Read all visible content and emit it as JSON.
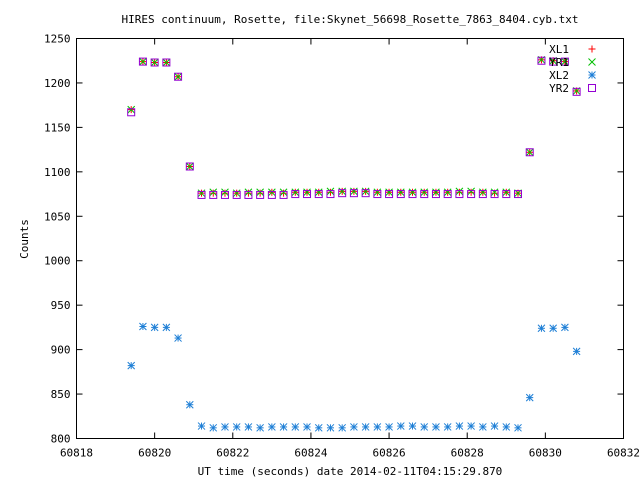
{
  "chart_data": {
    "type": "scatter",
    "title": "HIRES continuum, Rosette, file:Skynet_56698_Rosette_7863_8404.cyb.txt",
    "xlabel": "UT time (seconds) date 2014-02-11T04:15:29.870",
    "ylabel": "Counts",
    "xlim": [
      60818,
      60832
    ],
    "ylim": [
      800,
      1250
    ],
    "x_ticks": [
      "60818",
      "60820",
      "60822",
      "60824",
      "60826",
      "60828",
      "60830",
      "60832"
    ],
    "y_ticks": [
      "800",
      "850",
      "900",
      "950",
      "1000",
      "1050",
      "1100",
      "1150",
      "1200",
      "1250"
    ],
    "grid": false,
    "legend_position": "top-right",
    "series": [
      {
        "name": "XL1",
        "color": "#ff0000",
        "marker": "plus",
        "x": [
          60819.4,
          60819.7,
          60820.0,
          60820.3,
          60820.6,
          60820.9,
          60821.2,
          60821.5,
          60821.8,
          60822.1,
          60822.4,
          60822.7,
          60823.0,
          60823.3,
          60823.6,
          60823.9,
          60824.2,
          60824.5,
          60824.8,
          60825.1,
          60825.4,
          60825.7,
          60826.0,
          60826.3,
          60826.6,
          60826.9,
          60827.2,
          60827.5,
          60827.8,
          60828.1,
          60828.4,
          60828.7,
          60829.0,
          60829.3,
          60829.6,
          60829.9,
          60830.2,
          60830.5,
          60830.8
        ],
        "y": [
          1170,
          1224,
          1223,
          1223,
          1207,
          1106,
          1076,
          1076,
          1076,
          1076,
          1076,
          1076,
          1077,
          1076,
          1077,
          1077,
          1077,
          1077,
          1078,
          1078,
          1078,
          1077,
          1077,
          1077,
          1077,
          1077,
          1077,
          1077,
          1077,
          1077,
          1077,
          1076,
          1077,
          1076,
          1122,
          1226,
          1225,
          1224,
          1191
        ]
      },
      {
        "name": "YR1",
        "color": "#00c000",
        "marker": "cross",
        "x": [
          60819.4,
          60819.7,
          60820.0,
          60820.3,
          60820.6,
          60820.9,
          60821.2,
          60821.5,
          60821.8,
          60822.1,
          60822.4,
          60822.7,
          60823.0,
          60823.3,
          60823.6,
          60823.9,
          60824.2,
          60824.5,
          60824.8,
          60825.1,
          60825.4,
          60825.7,
          60826.0,
          60826.3,
          60826.6,
          60826.9,
          60827.2,
          60827.5,
          60827.8,
          60828.1,
          60828.4,
          60828.7,
          60829.0,
          60829.3,
          60829.6,
          60829.9,
          60830.2,
          60830.5,
          60830.8
        ],
        "y": [
          1170,
          1224,
          1223,
          1223,
          1207,
          1106,
          1076,
          1077,
          1077,
          1076,
          1077,
          1077,
          1077,
          1077,
          1077,
          1077,
          1077,
          1078,
          1078,
          1078,
          1078,
          1077,
          1077,
          1077,
          1077,
          1077,
          1077,
          1077,
          1078,
          1078,
          1077,
          1077,
          1077,
          1076,
          1122,
          1226,
          1225,
          1224,
          1191
        ]
      },
      {
        "name": "XL2",
        "color": "#1e7fd6",
        "marker": "star",
        "x": [
          60819.4,
          60819.7,
          60820.0,
          60820.3,
          60820.6,
          60820.9,
          60821.2,
          60821.5,
          60821.8,
          60822.1,
          60822.4,
          60822.7,
          60823.0,
          60823.3,
          60823.6,
          60823.9,
          60824.2,
          60824.5,
          60824.8,
          60825.1,
          60825.4,
          60825.7,
          60826.0,
          60826.3,
          60826.6,
          60826.9,
          60827.2,
          60827.5,
          60827.8,
          60828.1,
          60828.4,
          60828.7,
          60829.0,
          60829.3,
          60829.6,
          60829.9,
          60830.2,
          60830.5,
          60830.8
        ],
        "y": [
          882,
          926,
          925,
          925,
          913,
          838,
          814,
          812,
          813,
          813,
          813,
          812,
          813,
          813,
          813,
          813,
          812,
          812,
          812,
          813,
          813,
          813,
          813,
          814,
          814,
          813,
          813,
          813,
          814,
          814,
          813,
          814,
          813,
          812,
          846,
          924,
          924,
          925,
          898
        ]
      },
      {
        "name": "YR2",
        "color": "#9400d3",
        "marker": "square",
        "x": [
          60819.4,
          60819.7,
          60820.0,
          60820.3,
          60820.6,
          60820.9,
          60821.2,
          60821.5,
          60821.8,
          60822.1,
          60822.4,
          60822.7,
          60823.0,
          60823.3,
          60823.6,
          60823.9,
          60824.2,
          60824.5,
          60824.8,
          60825.1,
          60825.4,
          60825.7,
          60826.0,
          60826.3,
          60826.6,
          60826.9,
          60827.2,
          60827.5,
          60827.8,
          60828.1,
          60828.4,
          60828.7,
          60829.0,
          60829.3,
          60829.6,
          60829.9,
          60830.2,
          60830.5,
          60830.8
        ],
        "y": [
          1167,
          1224,
          1223,
          1223,
          1207,
          1106,
          1074,
          1074,
          1074,
          1074,
          1074,
          1074,
          1074,
          1074,
          1075,
          1075,
          1075,
          1075,
          1076,
          1076,
          1076,
          1075,
          1075,
          1075,
          1075,
          1075,
          1075,
          1075,
          1075,
          1075,
          1075,
          1075,
          1075,
          1075,
          1122,
          1225,
          1224,
          1224,
          1190
        ]
      }
    ]
  }
}
